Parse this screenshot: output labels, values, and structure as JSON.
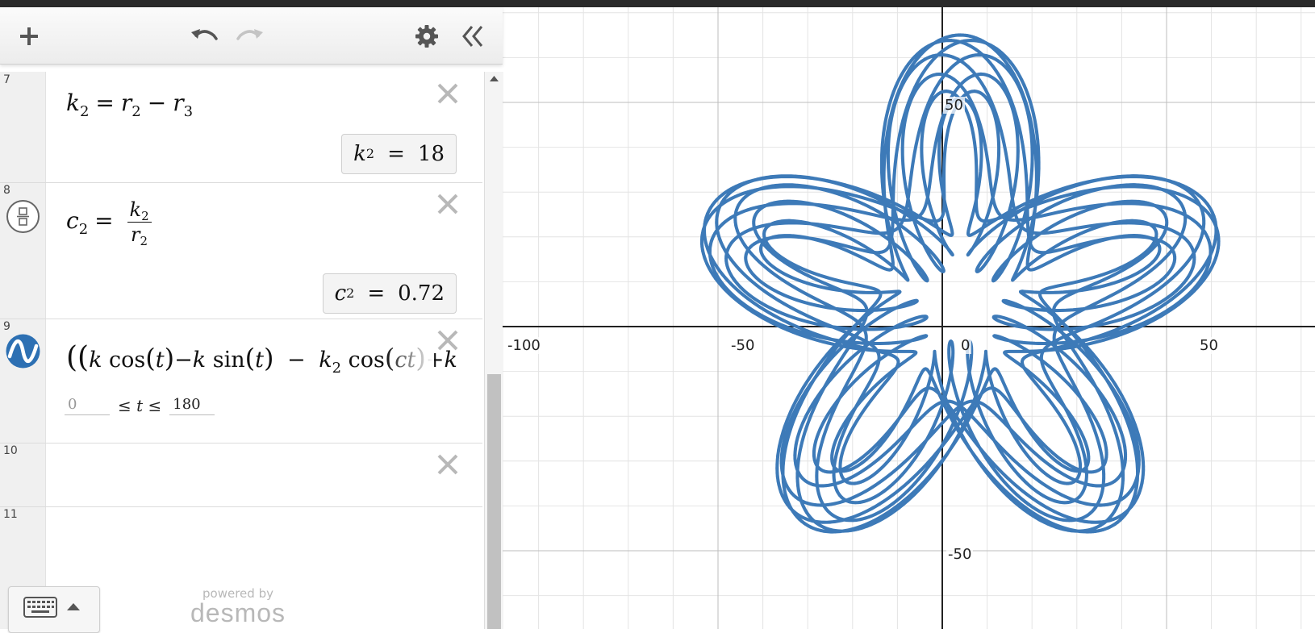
{
  "toolbar": {
    "add_icon": "plus-icon",
    "undo_icon": "undo-icon",
    "redo_icon": "redo-icon",
    "settings_icon": "gear-icon",
    "collapse_icon": "double-chevron-left-icon"
  },
  "expressions": [
    {
      "number": "7",
      "icon": "none",
      "latex": "k_2 = r_2 - r_3",
      "result": "k_2 = 18"
    },
    {
      "number": "8",
      "icon": "fraction-icon",
      "latex": "c_2 = k_2 / r_2",
      "result": "c_2 = 0.72"
    },
    {
      "number": "9",
      "icon": "parametric-curve-icon",
      "latex": "((k cos(t) - k sin(t) - k_2 cos(ct) + k",
      "domain_min": "0",
      "domain_max": "180"
    },
    {
      "number": "10",
      "icon": "none",
      "latex": ""
    },
    {
      "number": "11",
      "icon": "none",
      "latex": ""
    }
  ],
  "footer": {
    "keyboard_icon": "keyboard-icon",
    "powered_by": "powered by",
    "brand": "desmos"
  },
  "graph": {
    "x_tick_labels": [
      "-100",
      "-50",
      "0",
      "50"
    ],
    "y_tick_labels": [
      "50",
      "-50"
    ],
    "curve_color": "#3d7ab8",
    "grid_on": true
  },
  "colors": {
    "curve": "#3d7ab8",
    "parametric_icon": "#2d70b3"
  }
}
